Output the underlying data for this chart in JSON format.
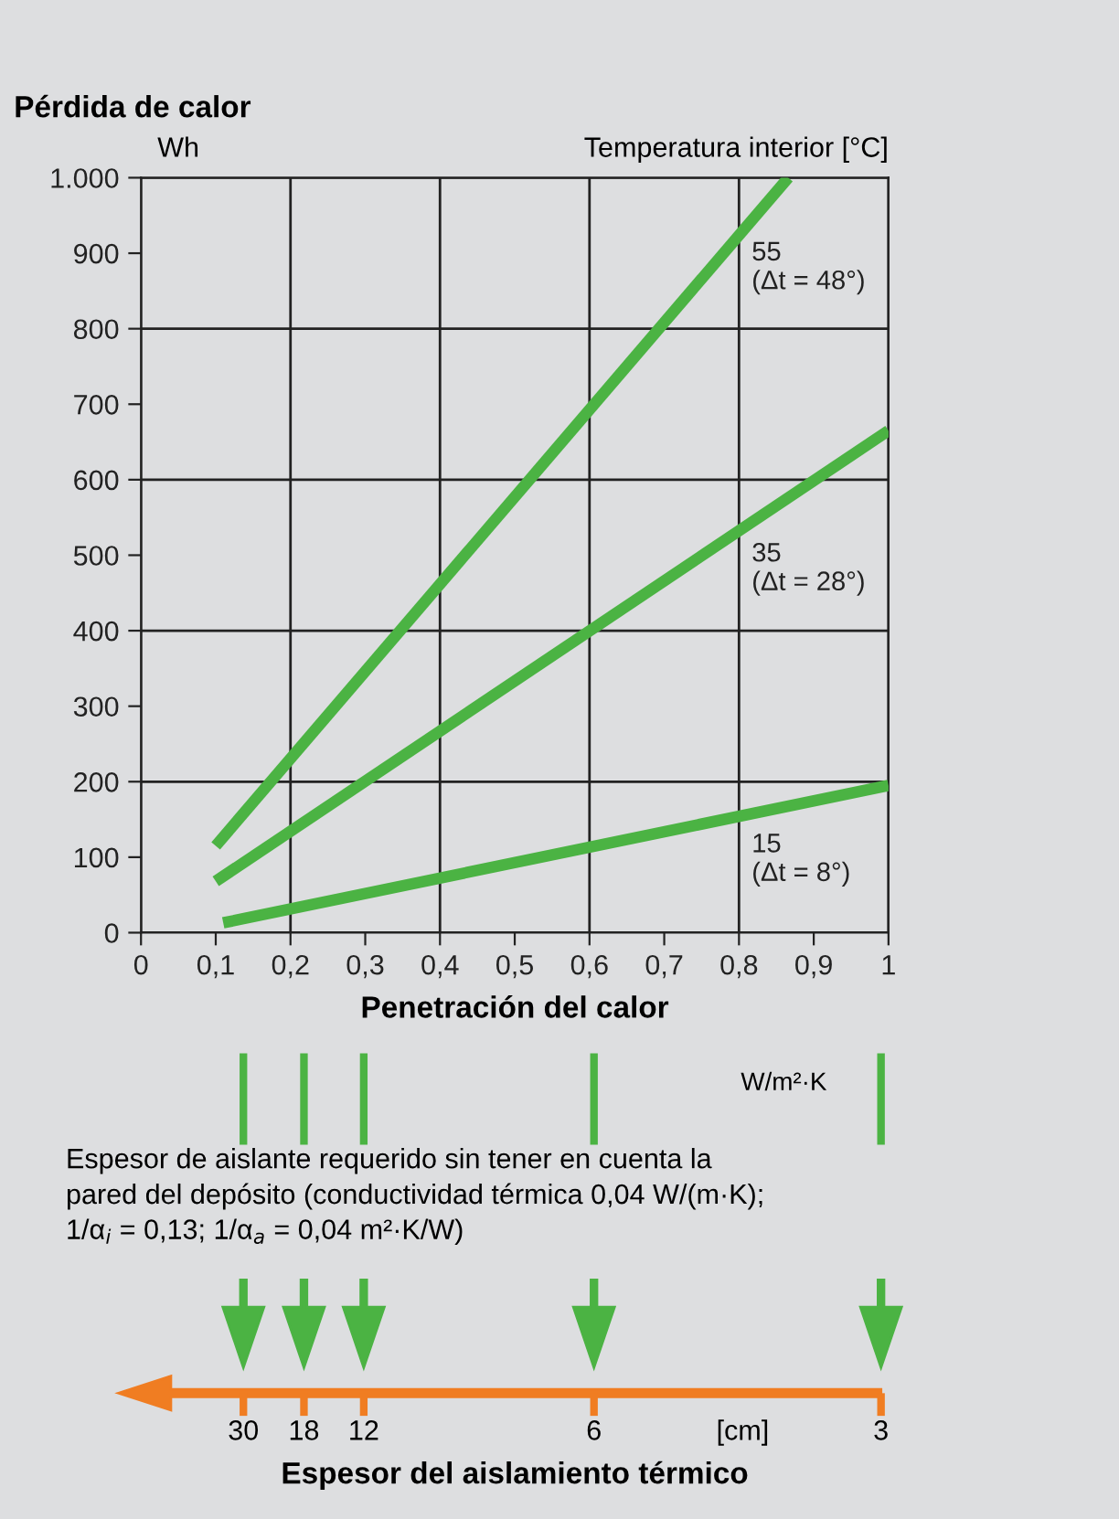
{
  "chart_data": {
    "type": "line",
    "title": "Pérdida de calor",
    "ylabel": "Wh",
    "xlabel": "Penetración del calor",
    "annotations": [
      "Temperatura interior [°C]",
      "W/m²·K",
      "Espesor de aislante requerido sin tener en cuenta la\npared del depósito (conductividad térmica 0,04 W/(m·K);\n1/α$_{i}$ = 0,13; 1/α$_{a}$ = 0,04 m²·K/W)",
      "30",
      "18",
      "12",
      "6",
      "[cm]",
      "3",
      "Espesor del aislamiento térmico"
    ],
    "series": [
      {
        "name": "55\n(Δt = 48°)",
        "color": "#4bb343",
        "x": [
          0.1,
          0.866
        ],
        "values": [
          115,
          1000
        ]
      },
      {
        "name": "35\n(Δt = 28°)",
        "color": "#4bb343",
        "x": [
          0.1,
          1
        ],
        "values": [
          68,
          665
        ]
      },
      {
        "name": "15\n(Δt = 8°)",
        "color": "#4bb343",
        "x": [
          0.11,
          1
        ],
        "values": [
          13,
          195
        ]
      }
    ],
    "xlim": [
      0,
      1
    ],
    "ylim": [
      0,
      1000
    ],
    "xticks": [
      0,
      {
        "value": 0.1,
        "label": "0,1"
      },
      {
        "value": 0.2,
        "label": "0,2"
      },
      {
        "value": 0.3,
        "label": "0,3"
      },
      {
        "value": 0.4,
        "label": "0,4"
      },
      {
        "value": 0.5,
        "label": "0,5"
      },
      {
        "value": 0.6,
        "label": "0,6"
      },
      {
        "value": 0.7,
        "label": "0,7"
      },
      {
        "value": 0.8,
        "label": "0,8"
      },
      {
        "value": 0.9,
        "label": "0,9"
      },
      1
    ],
    "yticks": [
      0,
      100,
      200,
      300,
      400,
      500,
      600,
      700,
      800,
      900,
      {
        "value": 1000,
        "label": "1.000"
      }
    ],
    "grid": true,
    "legend": false,
    "marker": "none",
    "line_style": "solid"
  }
}
